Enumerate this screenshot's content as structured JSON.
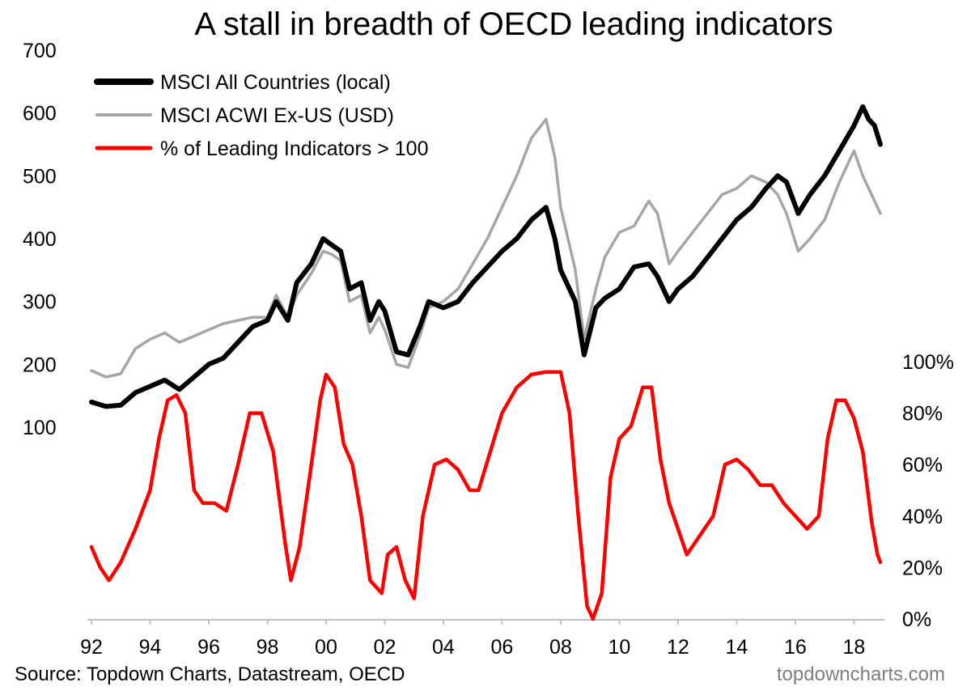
{
  "chart_data": {
    "type": "line",
    "title": "A stall in breadth of OECD leading indicators",
    "source": "Source: Topdown Charts, Datastream, OECD",
    "watermark": "topdowncharts.com",
    "x_range": [
      1992,
      2018.9
    ],
    "x_ticks": [
      {
        "value": 1992,
        "label": "92"
      },
      {
        "value": 1994,
        "label": "94"
      },
      {
        "value": 1996,
        "label": "96"
      },
      {
        "value": 1998,
        "label": "98"
      },
      {
        "value": 2000,
        "label": "00"
      },
      {
        "value": 2002,
        "label": "02"
      },
      {
        "value": 2004,
        "label": "04"
      },
      {
        "value": 2006,
        "label": "06"
      },
      {
        "value": 2008,
        "label": "08"
      },
      {
        "value": 2010,
        "label": "10"
      },
      {
        "value": 2012,
        "label": "12"
      },
      {
        "value": 2014,
        "label": "14"
      },
      {
        "value": 2016,
        "label": "16"
      },
      {
        "value": 2018,
        "label": "18"
      }
    ],
    "y_left": {
      "range": [
        100,
        700
      ],
      "ticks": [
        "700",
        "600",
        "500",
        "400",
        "300",
        "200",
        "100"
      ],
      "tick_values": [
        700,
        600,
        500,
        400,
        300,
        200,
        100
      ]
    },
    "y_right": {
      "range": [
        0,
        100
      ],
      "ticks": [
        "100%",
        "80%",
        "60%",
        "40%",
        "20%",
        "0%"
      ],
      "tick_values": [
        100,
        80,
        60,
        40,
        20,
        0
      ]
    },
    "legend_position": "top-left",
    "series": [
      {
        "name": "MSCI All Countries (local)",
        "axis": "left",
        "color": "#000000",
        "x": [
          1992.0,
          1992.5,
          1993.0,
          1993.5,
          1994.0,
          1994.5,
          1995.0,
          1995.5,
          1996.0,
          1996.5,
          1997.0,
          1997.5,
          1998.0,
          1998.3,
          1998.7,
          1999.0,
          1999.5,
          1999.9,
          2000.2,
          2000.5,
          2000.8,
          2001.2,
          2001.5,
          2001.8,
          2002.0,
          2002.4,
          2002.8,
          2003.2,
          2003.5,
          2004.0,
          2004.5,
          2005.0,
          2005.5,
          2006.0,
          2006.5,
          2007.0,
          2007.5,
          2007.8,
          2008.0,
          2008.5,
          2008.8,
          2009.2,
          2009.5,
          2010.0,
          2010.5,
          2011.0,
          2011.3,
          2011.7,
          2012.0,
          2012.5,
          2013.0,
          2013.5,
          2014.0,
          2014.5,
          2015.0,
          2015.4,
          2015.7,
          2016.1,
          2016.5,
          2017.0,
          2017.5,
          2018.0,
          2018.3,
          2018.5,
          2018.7,
          2018.9
        ],
        "y": [
          140,
          133,
          135,
          155,
          165,
          175,
          160,
          180,
          200,
          210,
          235,
          260,
          270,
          300,
          270,
          330,
          360,
          400,
          390,
          380,
          320,
          330,
          270,
          300,
          285,
          220,
          215,
          260,
          300,
          290,
          300,
          330,
          355,
          380,
          400,
          430,
          450,
          400,
          350,
          300,
          215,
          290,
          305,
          320,
          355,
          360,
          340,
          300,
          320,
          340,
          370,
          400,
          430,
          450,
          480,
          500,
          490,
          440,
          470,
          500,
          540,
          580,
          610,
          590,
          580,
          550
        ]
      },
      {
        "name": "MSCI ACWI Ex-US (USD)",
        "axis": "left",
        "color": "#a6a6a6",
        "x": [
          1992.0,
          1992.5,
          1993.0,
          1993.5,
          1994.0,
          1994.5,
          1995.0,
          1995.5,
          1996.0,
          1996.5,
          1997.0,
          1997.5,
          1998.0,
          1998.3,
          1998.7,
          1999.0,
          1999.5,
          1999.9,
          2000.2,
          2000.5,
          2000.8,
          2001.2,
          2001.5,
          2001.8,
          2002.0,
          2002.4,
          2002.8,
          2003.2,
          2003.5,
          2004.0,
          2004.5,
          2005.0,
          2005.5,
          2006.0,
          2006.5,
          2007.0,
          2007.5,
          2007.8,
          2008.0,
          2008.5,
          2008.8,
          2009.2,
          2009.5,
          2010.0,
          2010.5,
          2011.0,
          2011.3,
          2011.7,
          2012.0,
          2012.5,
          2013.0,
          2013.5,
          2014.0,
          2014.5,
          2015.0,
          2015.4,
          2015.7,
          2016.1,
          2016.5,
          2017.0,
          2017.5,
          2018.0,
          2018.3,
          2018.5,
          2018.7,
          2018.9
        ],
        "y": [
          190,
          180,
          185,
          225,
          240,
          250,
          235,
          245,
          255,
          265,
          270,
          275,
          275,
          310,
          275,
          310,
          345,
          380,
          375,
          365,
          300,
          310,
          250,
          275,
          255,
          200,
          195,
          245,
          290,
          300,
          320,
          360,
          400,
          450,
          500,
          560,
          590,
          530,
          450,
          350,
          240,
          320,
          370,
          410,
          420,
          460,
          440,
          360,
          380,
          410,
          440,
          470,
          480,
          500,
          490,
          470,
          440,
          380,
          400,
          430,
          490,
          540,
          500,
          480,
          460,
          440
        ]
      },
      {
        "name": "% of Leading Indicators > 100",
        "axis": "right",
        "color": "#ff0000",
        "x": [
          1992.0,
          1992.3,
          1992.6,
          1993.0,
          1993.5,
          1994.0,
          1994.3,
          1994.6,
          1994.9,
          1995.2,
          1995.5,
          1995.8,
          1996.2,
          1996.6,
          1997.0,
          1997.4,
          1997.8,
          1998.2,
          1998.6,
          1998.8,
          1999.1,
          1999.5,
          1999.8,
          2000.0,
          2000.3,
          2000.6,
          2000.9,
          2001.2,
          2001.5,
          2001.9,
          2002.1,
          2002.4,
          2002.7,
          2003.0,
          2003.3,
          2003.7,
          2004.1,
          2004.5,
          2004.9,
          2005.2,
          2005.6,
          2006.0,
          2006.5,
          2007.0,
          2007.5,
          2008.0,
          2008.3,
          2008.6,
          2008.9,
          2009.1,
          2009.4,
          2009.7,
          2010.0,
          2010.4,
          2010.8,
          2011.1,
          2011.4,
          2011.7,
          2012.0,
          2012.3,
          2012.6,
          2012.9,
          2013.2,
          2013.6,
          2014.0,
          2014.4,
          2014.8,
          2015.2,
          2015.6,
          2016.0,
          2016.4,
          2016.8,
          2017.1,
          2017.4,
          2017.7,
          2018.0,
          2018.3,
          2018.6,
          2018.8,
          2018.9
        ],
        "y": [
          28,
          20,
          15,
          22,
          35,
          50,
          70,
          85,
          87,
          80,
          50,
          45,
          45,
          42,
          60,
          80,
          80,
          65,
          30,
          15,
          28,
          60,
          85,
          95,
          90,
          68,
          60,
          40,
          15,
          10,
          25,
          28,
          15,
          8,
          40,
          60,
          62,
          58,
          50,
          50,
          65,
          80,
          90,
          95,
          96,
          96,
          80,
          40,
          5,
          0,
          10,
          55,
          70,
          75,
          90,
          90,
          62,
          45,
          35,
          25,
          30,
          35,
          40,
          60,
          62,
          58,
          52,
          52,
          45,
          40,
          35,
          40,
          70,
          85,
          85,
          78,
          65,
          38,
          25,
          22
        ]
      }
    ]
  }
}
